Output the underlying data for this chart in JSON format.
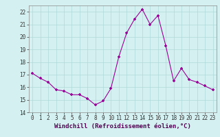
{
  "x": [
    0,
    1,
    2,
    3,
    4,
    5,
    6,
    7,
    8,
    9,
    10,
    11,
    12,
    13,
    14,
    15,
    16,
    17,
    18,
    19,
    20,
    21,
    22,
    23
  ],
  "y": [
    17.1,
    16.7,
    16.4,
    15.8,
    15.7,
    15.4,
    15.4,
    15.1,
    14.6,
    14.9,
    15.9,
    18.4,
    20.3,
    21.4,
    22.2,
    21.0,
    21.7,
    19.3,
    16.5,
    17.5,
    16.6,
    16.4,
    16.1,
    15.8
  ],
  "xlim": [
    -0.5,
    23.5
  ],
  "ylim": [
    14,
    22.5
  ],
  "yticks": [
    14,
    15,
    16,
    17,
    18,
    19,
    20,
    21,
    22
  ],
  "xticks": [
    0,
    1,
    2,
    3,
    4,
    5,
    6,
    7,
    8,
    9,
    10,
    11,
    12,
    13,
    14,
    15,
    16,
    17,
    18,
    19,
    20,
    21,
    22,
    23
  ],
  "xlabel": "Windchill (Refroidissement éolien,°C)",
  "line_color": "#990099",
  "marker_color": "#990099",
  "bg_color": "#d4f0f0",
  "grid_color": "#b0d8d8",
  "tick_fontsize": 5.5,
  "xlabel_fontsize": 6.5
}
